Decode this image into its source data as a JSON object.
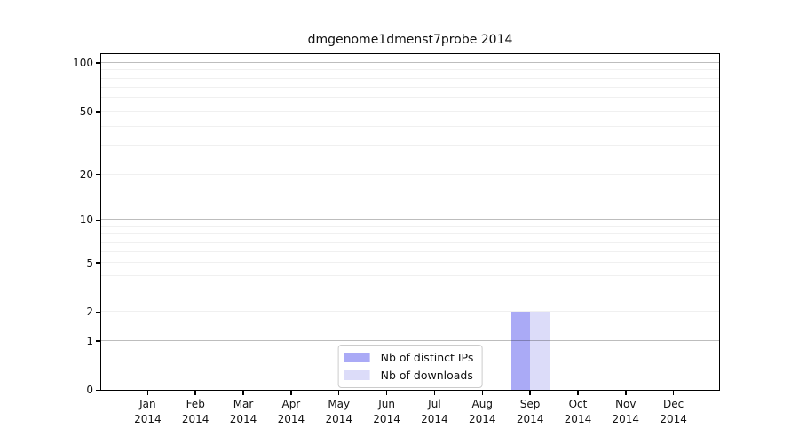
{
  "title": "dmgenome1dmenst7probe 2014",
  "chart_data": {
    "type": "bar",
    "title": "dmgenome1dmenst7probe 2014",
    "months": [
      "Jan",
      "Feb",
      "Mar",
      "Apr",
      "May",
      "Jun",
      "Jul",
      "Aug",
      "Sep",
      "Oct",
      "Nov",
      "Dec"
    ],
    "year": "2014",
    "series": [
      {
        "name": "Nb of distinct IPs",
        "color": "#aaaaf6",
        "values": [
          0,
          0,
          0,
          0,
          0,
          0,
          0,
          0,
          2,
          0,
          0,
          0
        ]
      },
      {
        "name": "Nb of downloads",
        "color": "#dcdcf9",
        "values": [
          0,
          0,
          0,
          0,
          0,
          0,
          0,
          0,
          2,
          0,
          0,
          0
        ]
      }
    ],
    "y_ticks": [
      0,
      1,
      2,
      5,
      10,
      20,
      50,
      100
    ],
    "y_major_gridlines": [
      1,
      10,
      100
    ],
    "y_minor_gridlines": [
      2,
      3,
      4,
      5,
      6,
      7,
      8,
      9,
      20,
      30,
      40,
      50,
      60,
      70,
      80,
      90
    ],
    "y_scale": "log10(value+1)",
    "ylim": [
      0,
      115
    ],
    "xlabel": "",
    "ylabel": "",
    "grid": "horizontal",
    "legend_position": "lower center"
  }
}
